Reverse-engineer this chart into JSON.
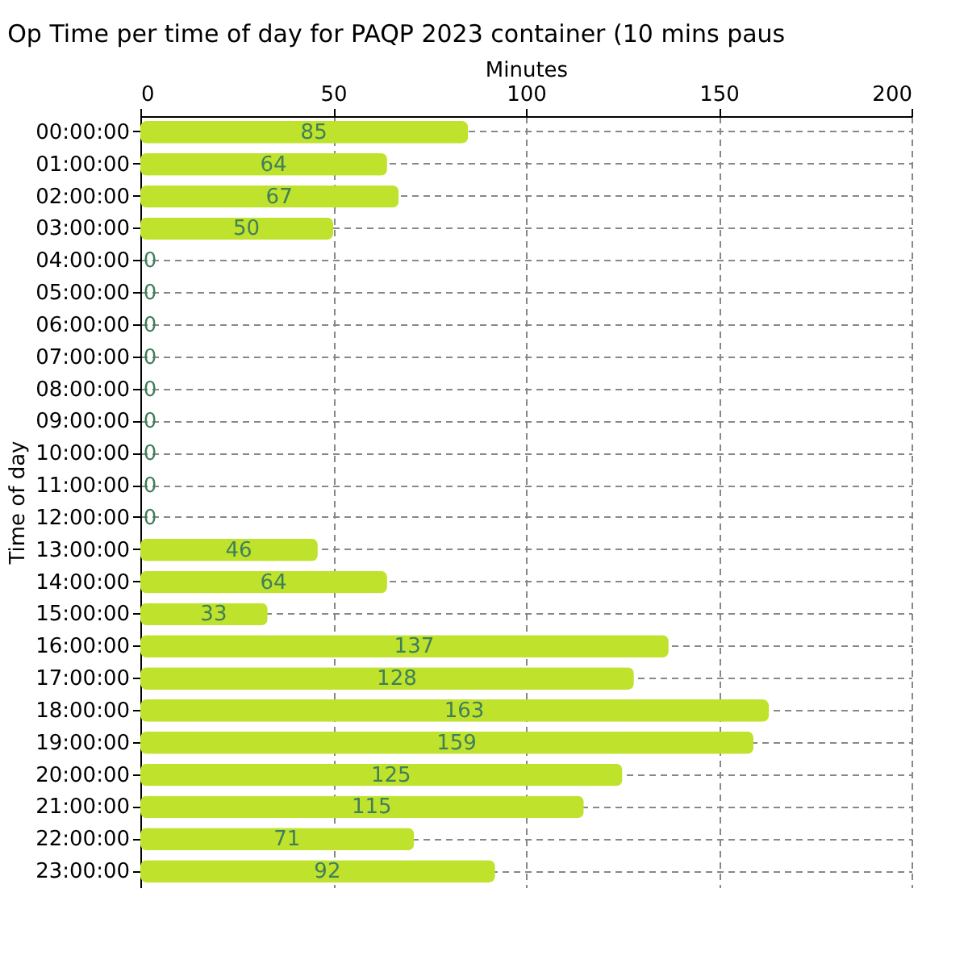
{
  "chart_data": {
    "type": "bar",
    "orientation": "horizontal",
    "title": "Op Time per time of day for PAQP 2023 container (10 mins paus",
    "xlabel": "Minutes",
    "ylabel": "Time of day",
    "categories": [
      "00:00:00",
      "01:00:00",
      "02:00:00",
      "03:00:00",
      "04:00:00",
      "05:00:00",
      "06:00:00",
      "07:00:00",
      "08:00:00",
      "09:00:00",
      "10:00:00",
      "11:00:00",
      "12:00:00",
      "13:00:00",
      "14:00:00",
      "15:00:00",
      "16:00:00",
      "17:00:00",
      "18:00:00",
      "19:00:00",
      "20:00:00",
      "21:00:00",
      "22:00:00",
      "23:00:00"
    ],
    "values": [
      85,
      64,
      67,
      50,
      0,
      0,
      0,
      0,
      0,
      0,
      0,
      0,
      0,
      46,
      64,
      33,
      137,
      128,
      163,
      159,
      125,
      115,
      71,
      92
    ],
    "color": "#bfe22d",
    "xlim": [
      0,
      200
    ],
    "xticks": [
      0,
      50,
      100,
      150,
      200
    ],
    "grid": true,
    "data_labels": true
  }
}
